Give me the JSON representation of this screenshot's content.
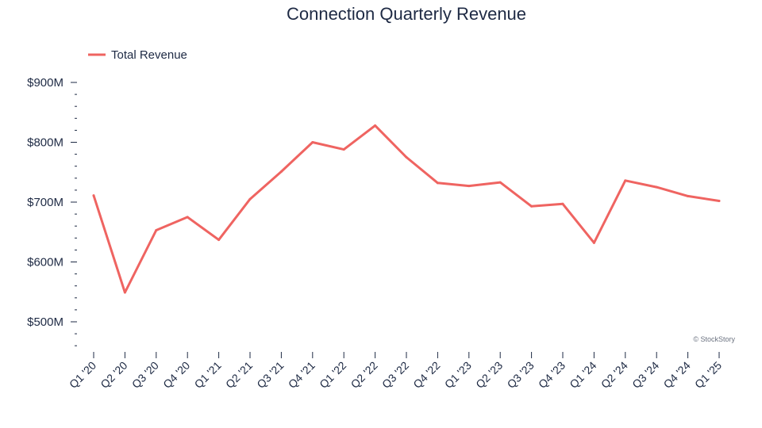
{
  "chart_data": {
    "type": "line",
    "title": "Connection Quarterly Revenue",
    "xlabel": "",
    "ylabel": "",
    "categories": [
      "Q1 '20",
      "Q2 '20",
      "Q3 '20",
      "Q4 '20",
      "Q1 '21",
      "Q2 '21",
      "Q3 '21",
      "Q4 '21",
      "Q1 '22",
      "Q2 '22",
      "Q3 '22",
      "Q4 '22",
      "Q1 '23",
      "Q2 '23",
      "Q3 '23",
      "Q4 '23",
      "Q1 '24",
      "Q2 '24",
      "Q3 '24",
      "Q4 '24",
      "Q1 '25"
    ],
    "series": [
      {
        "name": "Total Revenue",
        "color": "#ef6461",
        "values": [
          711,
          549,
          653,
          675,
          637,
          705,
          751,
          800,
          788,
          828,
          775,
          732,
          727,
          733,
          693,
          697,
          632,
          736,
          725,
          710,
          702
        ]
      }
    ],
    "yticks": [
      500,
      600,
      700,
      800,
      900
    ],
    "ytick_labels": [
      "$500M",
      "$600M",
      "$700M",
      "$800M",
      "$900M"
    ],
    "ylim": [
      450,
      900
    ],
    "grid": false,
    "legend": "top-left",
    "watermark": "© StockStory"
  }
}
